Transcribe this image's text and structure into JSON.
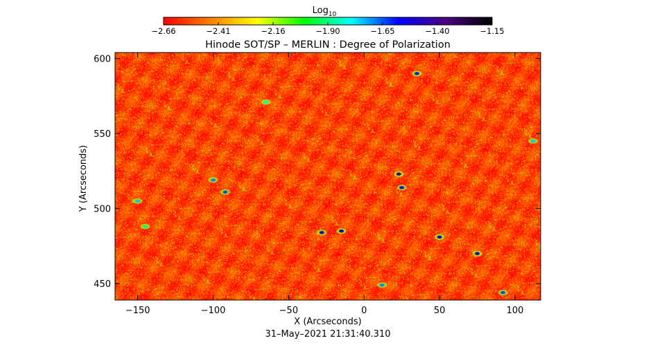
{
  "colorbar": {
    "label_main": "Log",
    "label_sub": "10",
    "ticks": [
      "−2.66",
      "−2.41",
      "−2.16",
      "−1.90",
      "−1.65",
      "−1.40",
      "−1.15"
    ],
    "min": -2.66,
    "max": -1.15,
    "colormap": [
      "#ff0000",
      "#ff8000",
      "#ffff00",
      "#00ff00",
      "#00ffff",
      "#0000ff",
      "#4b0082",
      "#000000"
    ]
  },
  "chart_data": {
    "type": "heatmap",
    "title": "Hinode SOT/SP – MERLIN : Degree of Polarization",
    "xlabel": "X (Arcseconds)",
    "ylabel": "Y (Arcseconds)",
    "xlim": [
      -165,
      117
    ],
    "ylim": [
      439,
      604
    ],
    "x_ticks": [
      -150,
      -100,
      -50,
      0,
      50,
      100
    ],
    "y_ticks": [
      450,
      500,
      550,
      600
    ],
    "x_tick_labels": [
      "−150",
      "−100",
      "−50",
      "0",
      "50",
      "100"
    ],
    "y_tick_labels": [
      "450",
      "500",
      "550",
      "600"
    ],
    "value_range": [
      -2.66,
      -1.15
    ],
    "dominant_value": -2.55,
    "features": [
      {
        "x": -28,
        "y": 484,
        "value": -1.5
      },
      {
        "x": -15,
        "y": 485,
        "value": -1.55
      },
      {
        "x": 23,
        "y": 523,
        "value": -1.45
      },
      {
        "x": 50,
        "y": 481,
        "value": -1.55
      },
      {
        "x": 75,
        "y": 470,
        "value": -1.5
      },
      {
        "x": 35,
        "y": 590,
        "value": -1.6
      },
      {
        "x": -100,
        "y": 519,
        "value": -1.7
      },
      {
        "x": -92,
        "y": 511,
        "value": -1.65
      },
      {
        "x": 92,
        "y": 444,
        "value": -1.65
      },
      {
        "x": 25,
        "y": 514,
        "value": -1.6
      },
      {
        "x": -150,
        "y": 505,
        "value": -1.75
      },
      {
        "x": -65,
        "y": 571,
        "value": -1.85
      },
      {
        "x": 112,
        "y": 545,
        "value": -1.75
      },
      {
        "x": -145,
        "y": 488,
        "value": -1.9
      },
      {
        "x": 12,
        "y": 449,
        "value": -1.7
      }
    ]
  },
  "timestamp": "31–May–2021 21:31:40.310"
}
